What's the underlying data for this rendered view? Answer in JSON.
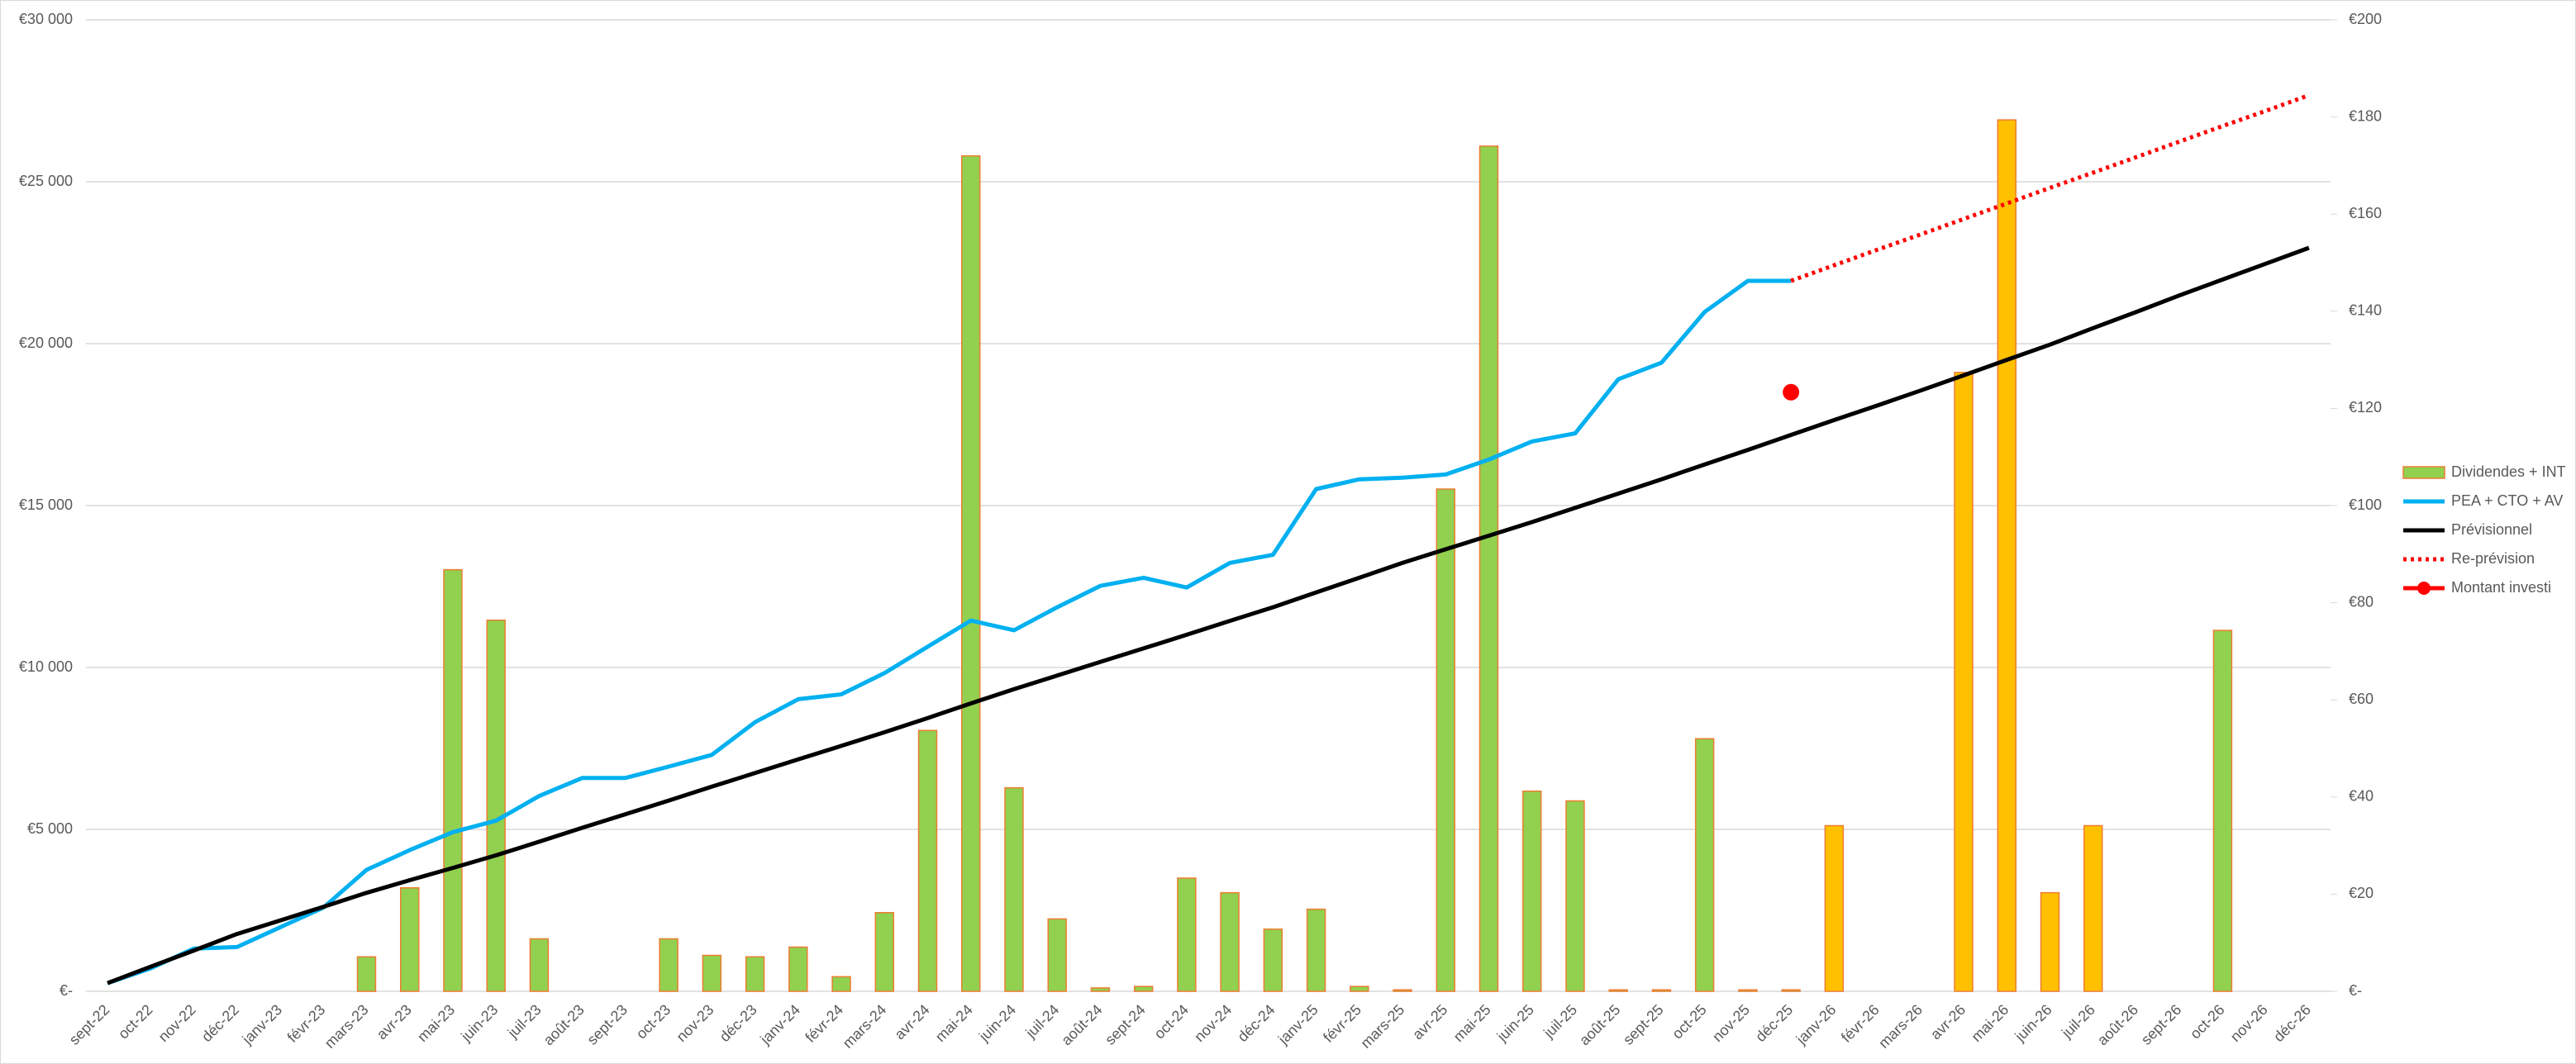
{
  "chart_data": {
    "type": "combo",
    "categories": [
      "sept-22",
      "oct-22",
      "nov-22",
      "déc-22",
      "janv-23",
      "févr-23",
      "mars-23",
      "avr-23",
      "mai-23",
      "juin-23",
      "juil-23",
      "août-23",
      "sept-23",
      "oct-23",
      "nov-23",
      "déc-23",
      "janv-24",
      "févr-24",
      "mars-24",
      "avr-24",
      "mai-24",
      "juin-24",
      "juil-24",
      "août-24",
      "sept-24",
      "oct-24",
      "nov-24",
      "déc-24",
      "janv-25",
      "févr-25",
      "mars-25",
      "avr-25",
      "mai-25",
      "juin-25",
      "juil-25",
      "août-25",
      "sept-25",
      "oct-25",
      "nov-25",
      "déc-25",
      "janv-26",
      "févr-26",
      "mars-26",
      "avr-26",
      "mai-26",
      "juin-26",
      "juil-26",
      "août-26",
      "sept-26",
      "oct-26",
      "nov-26",
      "déc-26"
    ],
    "ylim": [
      0,
      30000
    ],
    "yticks": [
      {
        "value": 0,
        "label": "€-"
      },
      {
        "value": 5000,
        "label": "€5 000"
      },
      {
        "value": 10000,
        "label": "€10 000"
      },
      {
        "value": 15000,
        "label": "€15 000"
      },
      {
        "value": 20000,
        "label": "€20 000"
      },
      {
        "value": 25000,
        "label": "€25 000"
      },
      {
        "value": 30000,
        "label": "€30 000"
      }
    ],
    "y2lim": [
      0,
      200
    ],
    "y2ticks": [
      {
        "value": 0,
        "label": "€-"
      },
      {
        "value": 20,
        "label": "€20"
      },
      {
        "value": 40,
        "label": "€40"
      },
      {
        "value": 60,
        "label": "€60"
      },
      {
        "value": 80,
        "label": "€80"
      },
      {
        "value": 100,
        "label": "€100"
      },
      {
        "value": 120,
        "label": "€120"
      },
      {
        "value": 140,
        "label": "€140"
      },
      {
        "value": 160,
        "label": "€160"
      },
      {
        "value": 180,
        "label": "€180"
      },
      {
        "value": 200,
        "label": "€200"
      }
    ],
    "grid": true,
    "legend": "right",
    "series": [
      {
        "name": "Dividendes + INT",
        "type": "bar",
        "axis": "y2",
        "color": "#92d050",
        "edge_color": "#ed7d31",
        "point_colors": [
          "#92d050",
          "#92d050",
          "#92d050",
          "#92d050",
          "#92d050",
          "#92d050",
          "#92d050",
          "#92d050",
          "#92d050",
          "#92d050",
          "#92d050",
          "#92d050",
          "#92d050",
          "#92d050",
          "#92d050",
          "#92d050",
          "#92d050",
          "#92d050",
          "#92d050",
          "#92d050",
          "#92d050",
          "#92d050",
          "#92d050",
          "#92d050",
          "#92d050",
          "#92d050",
          "#92d050",
          "#92d050",
          "#92d050",
          "#92d050",
          "#92d050",
          "#92d050",
          "#92d050",
          "#92d050",
          "#92d050",
          "#92d050",
          "#92d050",
          "#92d050",
          "#92d050",
          "#92d050",
          "#ffc000",
          "#ffc000",
          "#ffc000",
          "#ffc000",
          "#ffc000",
          "#ffc000",
          "#ffc000",
          "#ffc000",
          "#ffc000",
          "#92d050",
          "#ffc000",
          "#ffc000"
        ],
        "values": [
          0,
          0,
          0,
          0,
          0,
          0,
          7.1,
          21.3,
          86.8,
          76.4,
          10.8,
          0,
          0,
          10.8,
          7.4,
          7.1,
          9.1,
          3.0,
          16.2,
          53.7,
          172,
          41.9,
          14.9,
          0.7,
          1.0,
          23.3,
          20.3,
          12.8,
          16.9,
          1.0,
          0.3,
          103.4,
          174,
          41.2,
          39.2,
          0.3,
          0.3,
          52,
          0.3,
          0.3,
          34.1,
          0,
          0,
          127.4,
          179.4,
          20.3,
          34.1,
          0,
          0,
          74.3,
          0,
          0
        ]
      },
      {
        "name": "PEA + CTO + AV",
        "type": "line",
        "color": "#00b0f0",
        "values": [
          253,
          710,
          1318,
          1368,
          1976,
          2585,
          3750,
          4360,
          4916,
          5270,
          6030,
          6590,
          6590,
          6940,
          7300,
          8310,
          9020,
          9170,
          9830,
          10640,
          11450,
          11150,
          11860,
          12520,
          12770,
          12470,
          13230,
          13480,
          15510,
          15810,
          15860,
          15960,
          16420,
          16980,
          17230,
          18900,
          19410,
          20980,
          21940,
          21940,
          null,
          null,
          null,
          null,
          null,
          null,
          null,
          null,
          null,
          null,
          null,
          null
        ]
      },
      {
        "name": "Prévisionnel",
        "type": "line",
        "color": "#000000",
        "values": [
          253,
          760,
          1260,
          1770,
          2190,
          2610,
          3040,
          3430,
          3810,
          4200,
          4620,
          5050,
          5470,
          5890,
          6320,
          6740,
          7160,
          7580,
          8000,
          8440,
          8890,
          9330,
          9750,
          10170,
          10590,
          11010,
          11440,
          11860,
          12320,
          12770,
          13230,
          13650,
          14070,
          14490,
          14930,
          15370,
          15810,
          16270,
          16720,
          17180,
          17640,
          18090,
          18550,
          19020,
          19500,
          19970,
          20480,
          20980,
          21490,
          21980,
          22470,
          22960
        ]
      },
      {
        "name": "Re-prévision",
        "type": "line",
        "dash": "dotted",
        "color": "#ff0000",
        "values": [
          null,
          null,
          null,
          null,
          null,
          null,
          null,
          null,
          null,
          null,
          null,
          null,
          null,
          null,
          null,
          null,
          null,
          null,
          null,
          null,
          null,
          null,
          null,
          null,
          null,
          null,
          null,
          null,
          null,
          null,
          null,
          null,
          null,
          null,
          null,
          null,
          null,
          null,
          null,
          21940,
          22420,
          22900,
          23370,
          23850,
          24330,
          24810,
          25280,
          25760,
          26240,
          26720,
          27190,
          27670
        ]
      },
      {
        "name": "Montant investi",
        "type": "scatter",
        "color": "#ff0000",
        "values": [
          null,
          null,
          null,
          null,
          null,
          null,
          null,
          null,
          null,
          null,
          null,
          null,
          null,
          null,
          null,
          null,
          null,
          null,
          null,
          null,
          null,
          null,
          null,
          null,
          null,
          null,
          null,
          null,
          null,
          null,
          null,
          null,
          null,
          null,
          null,
          null,
          null,
          null,
          null,
          18500,
          null,
          null,
          null,
          null,
          null,
          null,
          null,
          null,
          null,
          null,
          null,
          null
        ]
      }
    ]
  }
}
